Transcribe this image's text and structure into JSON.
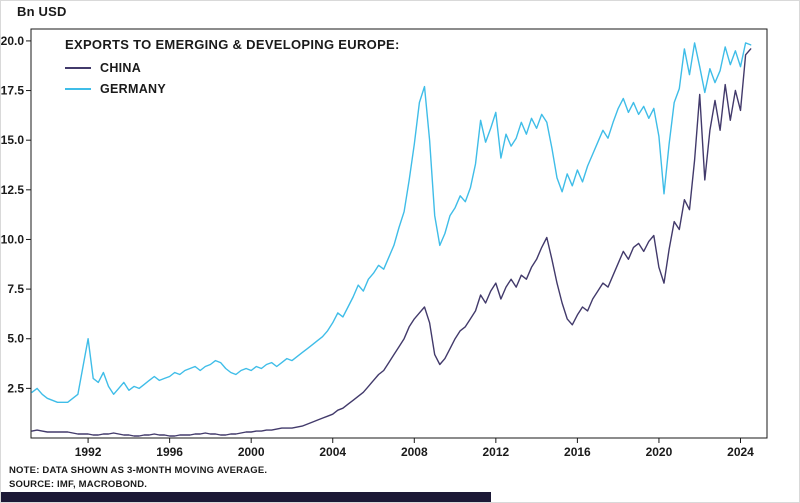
{
  "header": {
    "y_unit_label": "Bn USD"
  },
  "legend": {
    "title": "EXPORTS TO EMERGING & DEVELOPING EUROPE:"
  },
  "notes": {
    "line1": "NOTE: DATA SHOWN AS 3-MONTH MOVING AVERAGE.",
    "line2": "SOURCE: IMF, MACROBOND."
  },
  "footer": {
    "bar_color": "#1c1936"
  },
  "chart_data": {
    "type": "line",
    "title": "EXPORTS TO EMERGING & DEVELOPING EUROPE:",
    "ylabel": "Bn USD",
    "xlabel": "",
    "grid": false,
    "legend_position": "top-left-inside",
    "ylim": [
      0,
      20.6
    ],
    "xlim": [
      1989.2,
      2025.3
    ],
    "yticks": [
      2.5,
      5.0,
      7.5,
      10.0,
      12.5,
      15.0,
      17.5,
      20.0
    ],
    "xticks": [
      1992,
      1996,
      2000,
      2004,
      2008,
      2012,
      2016,
      2020,
      2024
    ],
    "x_start": 1989.25,
    "x_step": 0.25,
    "x_unit": "year (quarterly samples of monthly 3-month moving average)",
    "series": [
      {
        "name": "CHINA",
        "color": "#423a6b",
        "values": [
          0.35,
          0.4,
          0.35,
          0.3,
          0.3,
          0.3,
          0.3,
          0.3,
          0.25,
          0.2,
          0.2,
          0.2,
          0.15,
          0.15,
          0.2,
          0.2,
          0.25,
          0.2,
          0.15,
          0.15,
          0.1,
          0.1,
          0.15,
          0.15,
          0.2,
          0.15,
          0.15,
          0.1,
          0.1,
          0.15,
          0.15,
          0.15,
          0.2,
          0.2,
          0.25,
          0.2,
          0.2,
          0.15,
          0.15,
          0.2,
          0.2,
          0.25,
          0.3,
          0.3,
          0.35,
          0.35,
          0.4,
          0.4,
          0.45,
          0.5,
          0.5,
          0.5,
          0.55,
          0.6,
          0.7,
          0.8,
          0.9,
          1.0,
          1.1,
          1.2,
          1.4,
          1.5,
          1.7,
          1.9,
          2.1,
          2.3,
          2.6,
          2.9,
          3.2,
          3.4,
          3.8,
          4.2,
          4.6,
          5.0,
          5.6,
          6.0,
          6.3,
          6.6,
          5.8,
          4.2,
          3.7,
          4.0,
          4.5,
          5.0,
          5.4,
          5.6,
          6.0,
          6.4,
          7.2,
          6.8,
          7.4,
          7.8,
          7.0,
          7.6,
          8.0,
          7.6,
          8.2,
          8.0,
          8.6,
          9.0,
          9.6,
          10.1,
          9.0,
          7.8,
          6.8,
          6.0,
          5.7,
          6.2,
          6.6,
          6.4,
          7.0,
          7.4,
          7.8,
          7.6,
          8.2,
          8.8,
          9.4,
          9.0,
          9.6,
          9.8,
          9.4,
          9.9,
          10.2,
          8.6,
          7.8,
          9.5,
          10.9,
          10.5,
          12.0,
          11.5,
          14.0,
          17.3,
          13.0,
          15.5,
          17.0,
          15.5,
          17.8,
          16.0,
          17.5,
          16.5,
          19.3,
          19.6
        ]
      },
      {
        "name": "GERMANY",
        "color": "#3fbde8",
        "values": [
          2.3,
          2.5,
          2.2,
          2.0,
          1.9,
          1.8,
          1.8,
          1.8,
          2.0,
          2.2,
          3.6,
          5.0,
          3.0,
          2.8,
          3.3,
          2.6,
          2.2,
          2.5,
          2.8,
          2.4,
          2.6,
          2.5,
          2.7,
          2.9,
          3.1,
          2.9,
          3.0,
          3.1,
          3.3,
          3.2,
          3.4,
          3.5,
          3.6,
          3.4,
          3.6,
          3.7,
          3.9,
          3.8,
          3.5,
          3.3,
          3.2,
          3.4,
          3.5,
          3.4,
          3.6,
          3.5,
          3.7,
          3.8,
          3.6,
          3.8,
          4.0,
          3.9,
          4.1,
          4.3,
          4.5,
          4.7,
          4.9,
          5.1,
          5.4,
          5.8,
          6.3,
          6.1,
          6.6,
          7.1,
          7.7,
          7.4,
          8.0,
          8.3,
          8.7,
          8.5,
          9.1,
          9.7,
          10.6,
          11.4,
          13.0,
          14.8,
          16.9,
          17.7,
          15.0,
          11.2,
          9.7,
          10.3,
          11.2,
          11.6,
          12.2,
          11.9,
          12.6,
          13.8,
          16.0,
          14.9,
          15.6,
          16.4,
          14.1,
          15.3,
          14.7,
          15.1,
          15.9,
          15.3,
          16.1,
          15.6,
          16.3,
          15.9,
          14.6,
          13.1,
          12.4,
          13.3,
          12.7,
          13.5,
          12.9,
          13.7,
          14.3,
          14.9,
          15.5,
          15.1,
          15.9,
          16.6,
          17.1,
          16.4,
          16.9,
          16.3,
          16.7,
          16.1,
          16.6,
          15.2,
          12.3,
          14.8,
          16.9,
          17.6,
          19.6,
          18.3,
          19.9,
          18.7,
          17.4,
          18.6,
          17.9,
          18.5,
          19.7,
          18.8,
          19.5,
          18.7,
          19.9,
          19.8
        ]
      }
    ]
  }
}
